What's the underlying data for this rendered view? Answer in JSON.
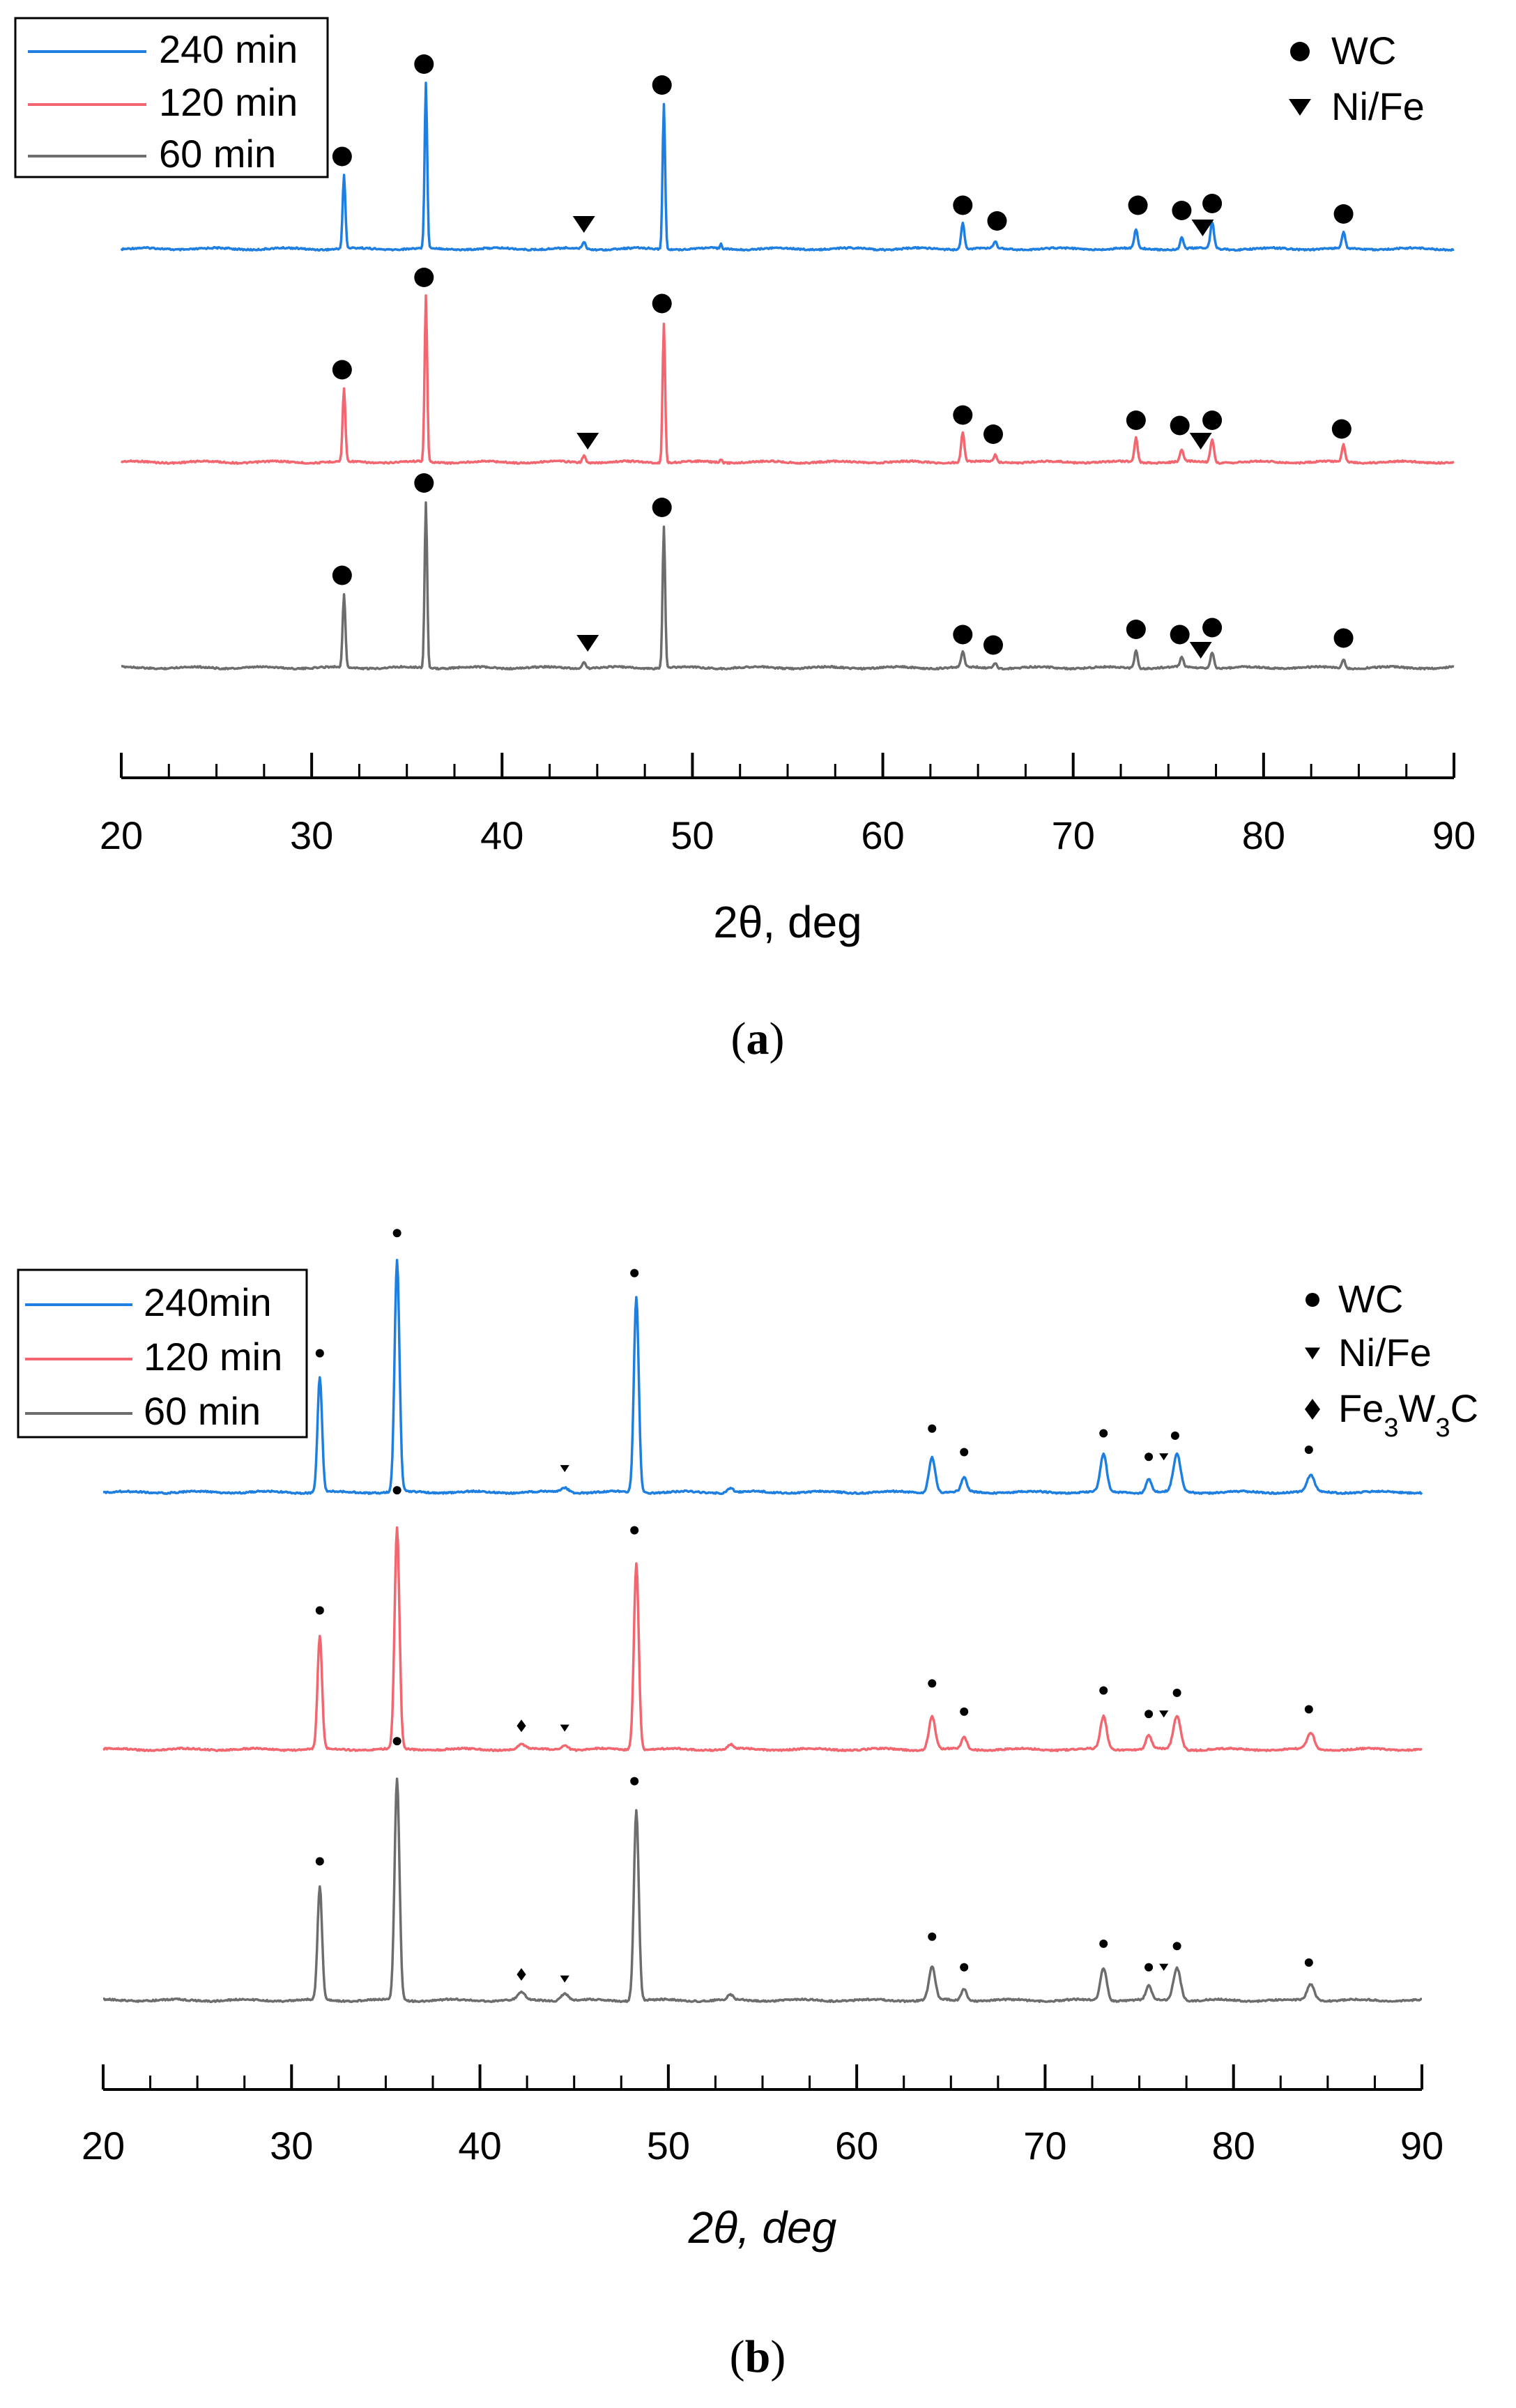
{
  "colors": {
    "s240": "#1e7fe0",
    "s120": "#f26670",
    "s60": "#6d6d6d",
    "axis": "#000000",
    "marker": "#000000"
  },
  "chart_data": [
    {
      "panel_id": "a",
      "type": "line",
      "caption_letter": "a",
      "caption_open": "(",
      "caption_close": ")",
      "xlabel": "2θ, deg",
      "ylabel": "",
      "xlim": [
        20,
        90
      ],
      "xticks": [
        "20",
        "30",
        "40",
        "50",
        "60",
        "70",
        "80",
        "90"
      ],
      "legend": [
        "240 min",
        "120 min",
        "60 min"
      ],
      "legend_position": "top-left",
      "phase_legend": [
        {
          "marker": "circle",
          "label": "WC",
          "label_parts": [
            [
              "WC",
              ""
            ]
          ]
        },
        {
          "marker": "triangle",
          "label": "Ni/Fe",
          "label_parts": [
            [
              "Ni/Fe",
              ""
            ]
          ]
        }
      ],
      "series": [
        {
          "name": "240 min",
          "color_key": "s240",
          "baseline": 0,
          "peaks": [
            [
              31.7,
              0.42,
              0.15
            ],
            [
              36.0,
              0.95,
              0.14
            ],
            [
              44.3,
              0.04,
              0.18
            ],
            [
              48.5,
              0.83,
              0.14
            ],
            [
              51.5,
              0.03,
              0.1
            ],
            [
              64.2,
              0.15,
              0.18
            ],
            [
              65.9,
              0.04,
              0.18
            ],
            [
              73.3,
              0.11,
              0.18
            ],
            [
              75.7,
              0.07,
              0.18
            ],
            [
              77.3,
              0.15,
              0.2
            ],
            [
              84.2,
              0.09,
              0.18
            ]
          ],
          "markers": [
            [
              31.6,
              0.53,
              "circle"
            ],
            [
              35.9,
              1.06,
              "circle"
            ],
            [
              44.3,
              0.14,
              "triangle"
            ],
            [
              48.4,
              0.94,
              "circle"
            ],
            [
              64.2,
              0.25,
              "circle"
            ],
            [
              66.0,
              0.16,
              "circle"
            ],
            [
              73.4,
              0.25,
              "circle"
            ],
            [
              75.7,
              0.22,
              "circle"
            ],
            [
              76.8,
              0.12,
              "triangle"
            ],
            [
              77.3,
              0.26,
              "circle"
            ],
            [
              84.2,
              0.2,
              "circle"
            ]
          ]
        },
        {
          "name": "120 min",
          "color_key": "s120",
          "baseline": 0,
          "peaks": [
            [
              31.7,
              0.42,
              0.15
            ],
            [
              36.0,
              0.95,
              0.14
            ],
            [
              44.3,
              0.04,
              0.18
            ],
            [
              48.5,
              0.8,
              0.14
            ],
            [
              51.5,
              0.02,
              0.1
            ],
            [
              64.2,
              0.17,
              0.18
            ],
            [
              65.9,
              0.04,
              0.18
            ],
            [
              73.3,
              0.14,
              0.18
            ],
            [
              75.7,
              0.07,
              0.18
            ],
            [
              77.3,
              0.13,
              0.2
            ],
            [
              84.2,
              0.1,
              0.18
            ]
          ],
          "markers": [
            [
              31.6,
              0.53,
              "circle"
            ],
            [
              35.9,
              1.06,
              "circle"
            ],
            [
              44.5,
              0.12,
              "triangle"
            ],
            [
              48.4,
              0.91,
              "circle"
            ],
            [
              64.2,
              0.27,
              "circle"
            ],
            [
              65.8,
              0.16,
              "circle"
            ],
            [
              73.3,
              0.24,
              "circle"
            ],
            [
              75.6,
              0.21,
              "circle"
            ],
            [
              76.7,
              0.12,
              "triangle"
            ],
            [
              77.3,
              0.24,
              "circle"
            ],
            [
              84.1,
              0.19,
              "circle"
            ]
          ]
        },
        {
          "name": "60 min",
          "color_key": "s60",
          "baseline": 0,
          "peaks": [
            [
              31.7,
              0.42,
              0.15
            ],
            [
              36.0,
              0.95,
              0.14
            ],
            [
              44.3,
              0.04,
              0.18
            ],
            [
              48.5,
              0.81,
              0.14
            ],
            [
              64.2,
              0.09,
              0.18
            ],
            [
              65.9,
              0.03,
              0.18
            ],
            [
              73.3,
              0.1,
              0.18
            ],
            [
              75.7,
              0.06,
              0.18
            ],
            [
              77.3,
              0.09,
              0.2
            ],
            [
              84.2,
              0.05,
              0.18
            ]
          ],
          "markers": [
            [
              31.6,
              0.53,
              "circle"
            ],
            [
              35.9,
              1.06,
              "circle"
            ],
            [
              44.5,
              0.14,
              "triangle"
            ],
            [
              48.4,
              0.92,
              "circle"
            ],
            [
              64.2,
              0.19,
              "circle"
            ],
            [
              65.8,
              0.13,
              "circle"
            ],
            [
              73.3,
              0.22,
              "circle"
            ],
            [
              75.6,
              0.19,
              "circle"
            ],
            [
              76.7,
              0.1,
              "triangle"
            ],
            [
              77.3,
              0.23,
              "circle"
            ],
            [
              84.2,
              0.17,
              "circle"
            ]
          ]
        }
      ]
    },
    {
      "panel_id": "b",
      "type": "line",
      "caption_letter": "b",
      "caption_open": "(",
      "caption_close": ")",
      "xlabel": "2θ, deg",
      "ylabel": "",
      "xlim": [
        20,
        90
      ],
      "xticks": [
        "20",
        "30",
        "40",
        "50",
        "60",
        "70",
        "80",
        "90"
      ],
      "legend": [
        "240min",
        "120 min",
        "60 min"
      ],
      "legend_position": "top-left",
      "phase_legend": [
        {
          "marker": "dot",
          "label": "WC",
          "label_parts": [
            [
              "WC",
              ""
            ]
          ]
        },
        {
          "marker": "smalltriangle",
          "label": "Ni/Fe",
          "label_parts": [
            [
              "Ni/Fe",
              ""
            ]
          ]
        },
        {
          "marker": "diamond",
          "label": "Fe3W3C",
          "label_parts": [
            [
              "Fe",
              ""
            ],
            [
              "3",
              "sub"
            ],
            [
              "W",
              ""
            ],
            [
              "3",
              "sub"
            ],
            [
              "C",
              ""
            ]
          ]
        }
      ],
      "series": [
        {
          "name": "240min",
          "color_key": "s240",
          "baseline": 0,
          "peaks": [
            [
              31.5,
              0.49,
              0.25
            ],
            [
              35.6,
              0.98,
              0.27
            ],
            [
              44.5,
              0.02,
              0.4
            ],
            [
              48.3,
              0.83,
              0.27
            ],
            [
              53.3,
              0.02,
              0.3
            ],
            [
              64.0,
              0.15,
              0.35
            ],
            [
              65.7,
              0.06,
              0.3
            ],
            [
              73.1,
              0.16,
              0.35
            ],
            [
              75.5,
              0.06,
              0.3
            ],
            [
              77.0,
              0.16,
              0.4
            ],
            [
              84.1,
              0.07,
              0.4
            ]
          ],
          "markers": [
            [
              31.5,
              0.59,
              "dot"
            ],
            [
              35.6,
              1.1,
              "dot"
            ],
            [
              44.5,
              0.1,
              "smalltriangle"
            ],
            [
              48.2,
              0.93,
              "dot"
            ],
            [
              64.0,
              0.27,
              "dot"
            ],
            [
              65.7,
              0.17,
              "dot"
            ],
            [
              73.1,
              0.25,
              "dot"
            ],
            [
              75.5,
              0.15,
              "dot"
            ],
            [
              76.3,
              0.15,
              "smalltriangle"
            ],
            [
              76.9,
              0.24,
              "dot"
            ],
            [
              84.0,
              0.18,
              "dot"
            ]
          ]
        },
        {
          "name": "120 min",
          "color_key": "s120",
          "baseline": 0,
          "peaks": [
            [
              31.5,
              0.48,
              0.25
            ],
            [
              35.6,
              0.94,
              0.27
            ],
            [
              42.2,
              0.02,
              0.4
            ],
            [
              44.5,
              0.02,
              0.4
            ],
            [
              48.3,
              0.79,
              0.27
            ],
            [
              53.3,
              0.02,
              0.3
            ],
            [
              64.0,
              0.14,
              0.35
            ],
            [
              65.7,
              0.05,
              0.3
            ],
            [
              73.1,
              0.14,
              0.35
            ],
            [
              75.5,
              0.06,
              0.3
            ],
            [
              77.0,
              0.14,
              0.4
            ],
            [
              84.1,
              0.07,
              0.4
            ]
          ],
          "markers": [
            [
              31.5,
              0.59,
              "dot"
            ],
            [
              35.6,
              1.1,
              "dot"
            ],
            [
              42.2,
              0.1,
              "diamond"
            ],
            [
              44.5,
              0.09,
              "smalltriangle"
            ],
            [
              48.2,
              0.93,
              "dot"
            ],
            [
              64.0,
              0.28,
              "dot"
            ],
            [
              65.7,
              0.16,
              "dot"
            ],
            [
              73.1,
              0.25,
              "dot"
            ],
            [
              75.5,
              0.15,
              "dot"
            ],
            [
              76.3,
              0.15,
              "smalltriangle"
            ],
            [
              77.0,
              0.24,
              "dot"
            ],
            [
              84.0,
              0.17,
              "dot"
            ]
          ]
        },
        {
          "name": "60 min",
          "color_key": "s60",
          "baseline": 0,
          "peaks": [
            [
              31.5,
              0.48,
              0.25
            ],
            [
              35.6,
              0.94,
              0.27
            ],
            [
              42.2,
              0.03,
              0.4
            ],
            [
              44.5,
              0.03,
              0.4
            ],
            [
              48.3,
              0.81,
              0.27
            ],
            [
              53.3,
              0.02,
              0.3
            ],
            [
              64.0,
              0.14,
              0.35
            ],
            [
              65.7,
              0.05,
              0.3
            ],
            [
              73.1,
              0.14,
              0.35
            ],
            [
              75.5,
              0.06,
              0.3
            ],
            [
              77.0,
              0.14,
              0.4
            ],
            [
              84.1,
              0.07,
              0.4
            ]
          ],
          "markers": [
            [
              31.5,
              0.59,
              "dot"
            ],
            [
              35.6,
              1.1,
              "dot"
            ],
            [
              42.2,
              0.11,
              "diamond"
            ],
            [
              44.5,
              0.09,
              "smalltriangle"
            ],
            [
              48.2,
              0.93,
              "dot"
            ],
            [
              64.0,
              0.27,
              "dot"
            ],
            [
              65.7,
              0.14,
              "dot"
            ],
            [
              73.1,
              0.24,
              "dot"
            ],
            [
              75.5,
              0.14,
              "dot"
            ],
            [
              76.3,
              0.14,
              "smalltriangle"
            ],
            [
              77.0,
              0.23,
              "dot"
            ],
            [
              84.0,
              0.16,
              "dot"
            ]
          ]
        }
      ]
    }
  ]
}
